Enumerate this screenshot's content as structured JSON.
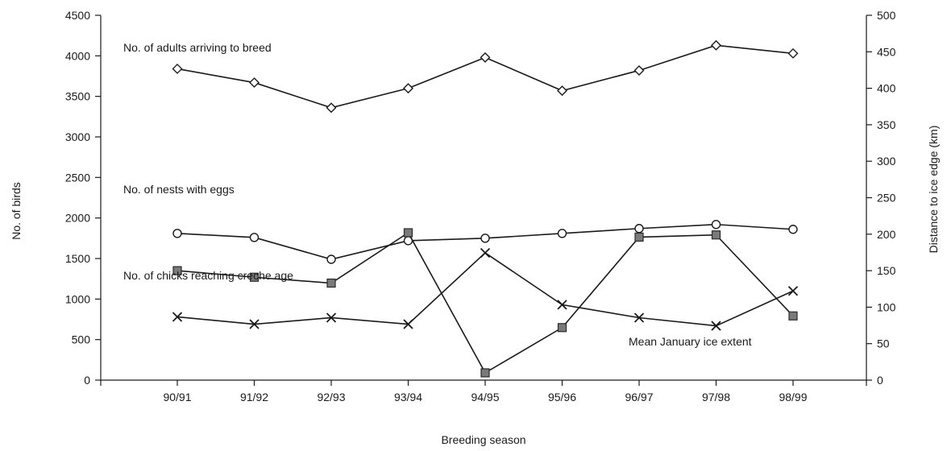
{
  "chart_data": {
    "type": "line",
    "title": "",
    "xlabel": "Breeding season",
    "ylabel": "No. of birds",
    "y2label": "Distance to ice edge (km)",
    "categories": [
      "90/91",
      "91/92",
      "92/93",
      "93/94",
      "94/95",
      "95/96",
      "96/97",
      "97/98",
      "98/99"
    ],
    "ylim": [
      0,
      4500
    ],
    "y2lim": [
      0,
      500
    ],
    "yticks": [
      0,
      500,
      1000,
      1500,
      2000,
      2500,
      3000,
      3500,
      4000,
      4500
    ],
    "y2ticks": [
      0,
      50,
      100,
      150,
      200,
      250,
      300,
      350,
      400,
      450,
      500
    ],
    "grid": false,
    "series": [
      {
        "name": "No. of adults arriving to breed",
        "axis": "left",
        "marker": "diamond",
        "values": [
          3840,
          3670,
          3360,
          3600,
          3980,
          3570,
          3820,
          4130,
          4030
        ]
      },
      {
        "name": "No. of nests with eggs",
        "axis": "left",
        "marker": "circle",
        "values": [
          1810,
          1760,
          1490,
          1720,
          1750,
          1810,
          1870,
          1920,
          1860
        ]
      },
      {
        "name": "No. of chicks reaching creche age",
        "axis": "left",
        "marker": "cross",
        "values": [
          780,
          690,
          770,
          690,
          1570,
          930,
          770,
          670,
          1100
        ]
      },
      {
        "name": "Mean January ice extent",
        "axis": "right",
        "marker": "square",
        "values": [
          150,
          141,
          133,
          202,
          10,
          72,
          196,
          199,
          88
        ]
      }
    ]
  }
}
